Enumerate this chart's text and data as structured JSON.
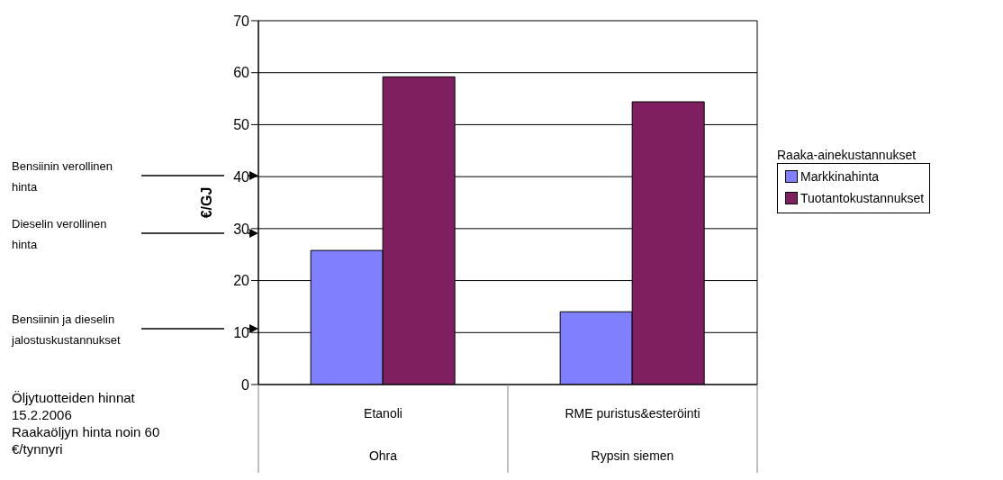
{
  "chart_data": {
    "type": "bar",
    "ylabel": "€/GJ",
    "legend_title": "Raaka-ainekustannukset",
    "legend": "right",
    "grid": "y",
    "categories": [
      "Etanoli\nOhra",
      "RME puristus&esteröinti\nRypsin siemen"
    ],
    "series": [
      {
        "name": "Markkinahinta",
        "color": "#8080ff",
        "values": [
          25.8,
          14.0
        ]
      },
      {
        "name": "Tuotantokustannukset",
        "color": "#7f1f5f",
        "values": [
          59.2,
          54.4
        ]
      }
    ],
    "ylim": [
      0,
      70
    ],
    "yticks": [
      0,
      10,
      20,
      30,
      40,
      50,
      60,
      70
    ],
    "annotations": [
      "Bensiinin verollinen hinta",
      "Dieselin verollinen hinta",
      "Bensiinin ja dieselin jalostuskustannukset",
      "Öljytuotteiden hinnat 15.2.2006",
      "Raakaöljyn hinta noin 60 €/tynnyri"
    ]
  }
}
